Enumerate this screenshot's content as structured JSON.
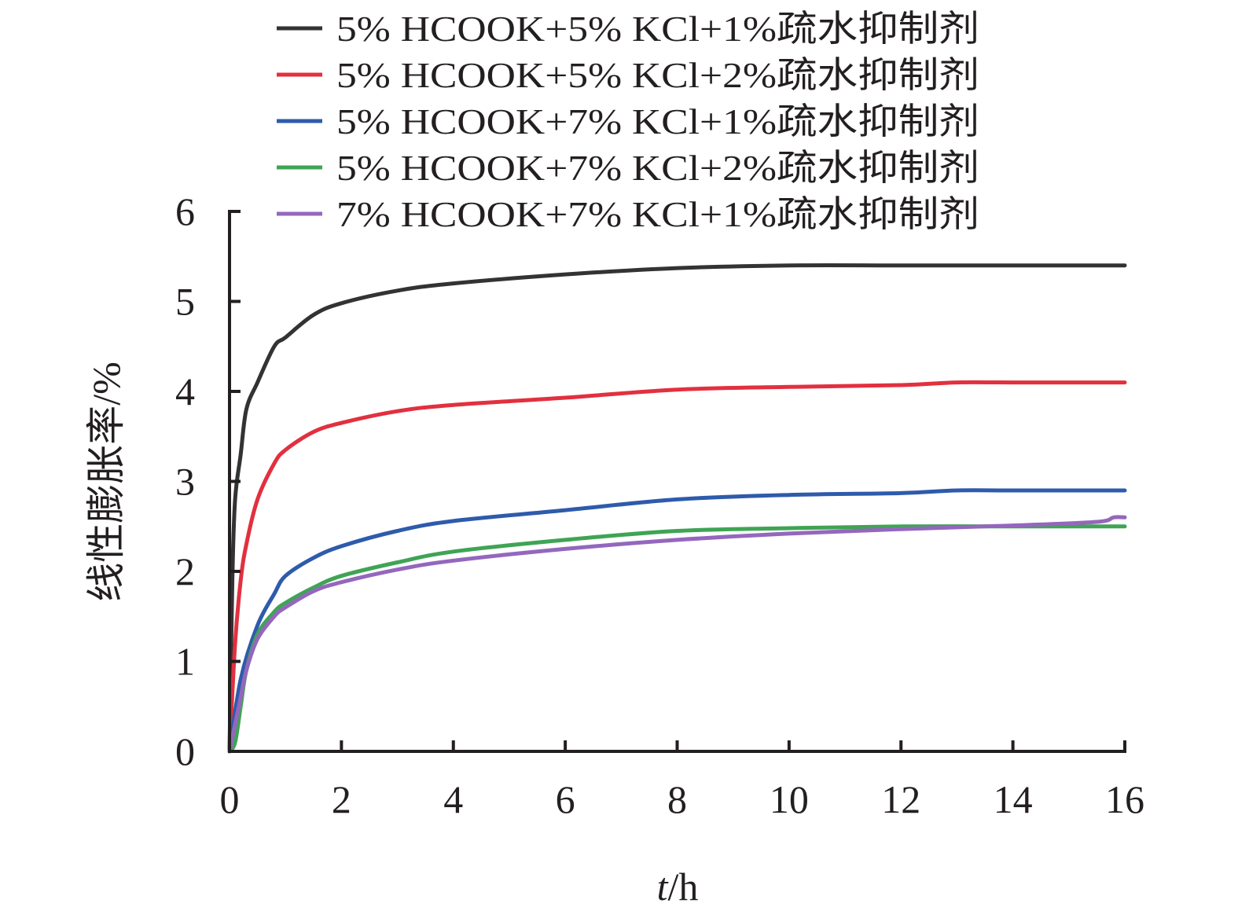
{
  "chart_data": {
    "type": "line",
    "xlabel_var": "t",
    "xlabel_unit": "/h",
    "ylabel": "线性膨胀率/%",
    "xlim": [
      0,
      16
    ],
    "ylim": [
      0,
      6
    ],
    "xticks": [
      0,
      2,
      4,
      6,
      8,
      10,
      12,
      14,
      16
    ],
    "yticks": [
      0,
      1,
      2,
      3,
      4,
      5,
      6
    ],
    "grid": false,
    "legend_position": "top",
    "series": [
      {
        "name": "5% HCOOK+5% KCl+1%疏水抑制剂",
        "color": "#333333",
        "x": [
          0,
          0.05,
          0.1,
          0.2,
          0.3,
          0.5,
          0.8,
          1.0,
          1.5,
          2.0,
          3.0,
          4.0,
          6.0,
          8.0,
          10.0,
          12.0,
          14.0,
          16.0
        ],
        "y": [
          0,
          1.9,
          2.8,
          3.3,
          3.8,
          4.1,
          4.5,
          4.6,
          4.85,
          4.98,
          5.12,
          5.2,
          5.3,
          5.37,
          5.4,
          5.4,
          5.4,
          5.4
        ]
      },
      {
        "name": "5% HCOOK+5% KCl+2%疏水抑制剂",
        "color": "#e2303f",
        "x": [
          0,
          0.1,
          0.2,
          0.3,
          0.5,
          0.8,
          1.0,
          1.5,
          2.0,
          3.0,
          4.0,
          6.0,
          8.0,
          10.0,
          12.0,
          13.0,
          14.0,
          16.0
        ],
        "y": [
          0,
          1.2,
          1.9,
          2.3,
          2.8,
          3.2,
          3.35,
          3.55,
          3.65,
          3.78,
          3.85,
          3.93,
          4.02,
          4.05,
          4.07,
          4.1,
          4.1,
          4.1
        ]
      },
      {
        "name": "5% HCOOK+7% KCl+1%疏水抑制剂",
        "color": "#2e5bab",
        "x": [
          0,
          0.2,
          0.5,
          0.8,
          1.0,
          1.5,
          2.0,
          3.0,
          4.0,
          6.0,
          8.0,
          10.0,
          12.0,
          13.0,
          14.0,
          16.0
        ],
        "y": [
          0,
          0.8,
          1.4,
          1.75,
          1.95,
          2.15,
          2.28,
          2.45,
          2.56,
          2.68,
          2.8,
          2.85,
          2.87,
          2.9,
          2.9,
          2.9
        ]
      },
      {
        "name": "5% HCOOK+7% KCl+2%疏水抑制剂",
        "color": "#3fa455",
        "x": [
          0,
          0.1,
          0.2,
          0.3,
          0.5,
          0.8,
          1.0,
          1.5,
          2.0,
          3.0,
          4.0,
          6.0,
          8.0,
          10.0,
          12.0,
          14.0,
          16.0
        ],
        "y": [
          0,
          0.1,
          0.5,
          0.9,
          1.3,
          1.55,
          1.65,
          1.82,
          1.95,
          2.1,
          2.22,
          2.35,
          2.45,
          2.48,
          2.5,
          2.5,
          2.5
        ]
      },
      {
        "name": "7% HCOOK+7% KCl+1%疏水抑制剂",
        "color": "#9467bd",
        "x": [
          0,
          0.1,
          0.2,
          0.3,
          0.5,
          0.8,
          1.0,
          1.5,
          2.0,
          3.0,
          4.0,
          6.0,
          8.0,
          10.0,
          12.0,
          14.0,
          15.5,
          15.8,
          16.0
        ],
        "y": [
          0,
          0.3,
          0.6,
          0.9,
          1.25,
          1.5,
          1.6,
          1.78,
          1.88,
          2.02,
          2.12,
          2.25,
          2.35,
          2.42,
          2.47,
          2.51,
          2.55,
          2.6,
          2.6
        ]
      }
    ]
  }
}
